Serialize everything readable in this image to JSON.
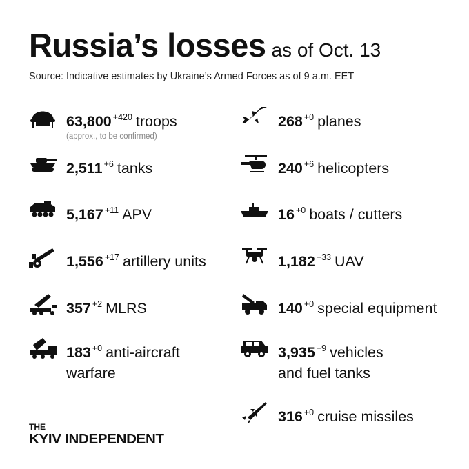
{
  "header": {
    "title": "Russia’s losses",
    "subtitle": "as of Oct. 13"
  },
  "source": "Source: Indicative estimates by Ukraine’s Armed Forces as of 9 a.m. EET",
  "left": [
    {
      "icon": "helmet-icon",
      "value": "63,800",
      "delta": "+420",
      "label": "troops",
      "note": "(approx., to be confirmed)"
    },
    {
      "icon": "tank-icon",
      "value": "2,511",
      "delta": "+6",
      "label": "tanks"
    },
    {
      "icon": "apv-icon",
      "value": "5,167",
      "delta": "+11",
      "label": "APV"
    },
    {
      "icon": "artillery-icon",
      "value": "1,556",
      "delta": "+17",
      "label": "artillery units"
    },
    {
      "icon": "mlrs-icon",
      "value": "357",
      "delta": "+2",
      "label": "MLRS"
    },
    {
      "icon": "anti-aircraft-icon",
      "value": "183",
      "delta": "+0",
      "label": "anti-aircraft",
      "label2": "warfare"
    }
  ],
  "right": [
    {
      "icon": "plane-icon",
      "value": "268",
      "delta": "+0",
      "label": "planes"
    },
    {
      "icon": "helicopter-icon",
      "value": "240",
      "delta": "+6",
      "label": "helicopters"
    },
    {
      "icon": "boat-icon",
      "value": "16",
      "delta": "+0",
      "label": "boats / cutters"
    },
    {
      "icon": "drone-icon",
      "value": "1,182",
      "delta": "+33",
      "label": "UAV"
    },
    {
      "icon": "special-equipment-icon",
      "value": "140",
      "delta": "+0",
      "label": "special equipment"
    },
    {
      "icon": "vehicle-icon",
      "value": "3,935",
      "delta": "+9",
      "label": "vehicles",
      "label2": "and fuel tanks"
    },
    {
      "icon": "missile-icon",
      "value": "316",
      "delta": "+0",
      "label": "cruise missiles"
    }
  ],
  "logo": {
    "the": "THE",
    "name": "KYIV INDEPENDENT"
  }
}
